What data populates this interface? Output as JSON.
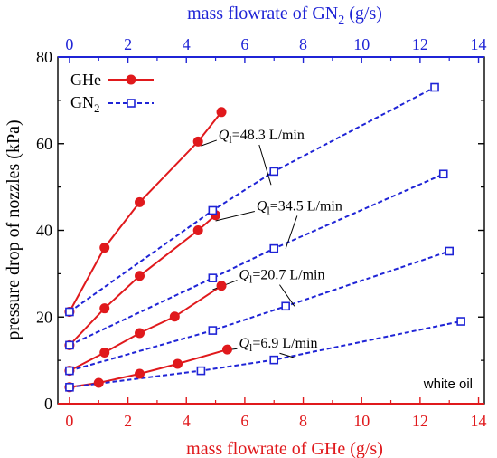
{
  "chart_data": {
    "type": "line",
    "x_bottom_label_main": "mass flowrate of GHe (g/s)",
    "x_top_label_pre": "mass flowrate of GN",
    "x_top_label_sub": "2",
    "x_top_label_post": " (g/s)",
    "y_label": "pressure drop of nozzles (kPa)",
    "x_bottom_range": [
      -0.4,
      14.2
    ],
    "x_top_range": [
      -0.4,
      14.2
    ],
    "y_range": [
      0,
      80
    ],
    "x_ticks": [
      "0",
      "2",
      "4",
      "6",
      "8",
      "10",
      "12",
      "14"
    ],
    "y_ticks": [
      "0",
      "20",
      "40",
      "60",
      "80"
    ],
    "x_tick_values": [
      0,
      2,
      4,
      6,
      8,
      10,
      12,
      14
    ],
    "y_tick_values": [
      0,
      20,
      40,
      60,
      80
    ],
    "legend": [
      {
        "label": "GHe",
        "label_sub": "",
        "style": "solid-filled-circle",
        "color": "#e0191c"
      },
      {
        "label": "GN",
        "label_sub": "2",
        "style": "dashed-open-square",
        "color": "#1f24d6"
      }
    ],
    "note": "white oil",
    "ghe_color": "#e0191c",
    "gn2_color": "#1f24d6",
    "x_bottom_axis_color": "#e0191c",
    "x_top_axis_color": "#1f24d6",
    "series": [
      {
        "name": "GHe",
        "axis": "bottom",
        "group": "48.3",
        "x": [
          0,
          1.2,
          2.4,
          4.4,
          5.2
        ],
        "y": [
          21.2,
          36,
          46.5,
          60.5,
          67.3
        ]
      },
      {
        "name": "GHe",
        "axis": "bottom",
        "group": "34.5",
        "x": [
          0,
          1.2,
          2.4,
          4.4,
          5.0
        ],
        "y": [
          13.5,
          22,
          29.5,
          40,
          43.5
        ]
      },
      {
        "name": "GHe",
        "axis": "bottom",
        "group": "20.7",
        "x": [
          0,
          1.2,
          2.4,
          3.6,
          5.2
        ],
        "y": [
          7.6,
          11.8,
          16.3,
          20.1,
          27.2
        ]
      },
      {
        "name": "GHe",
        "axis": "bottom",
        "group": "6.9",
        "x": [
          0,
          1.0,
          2.4,
          3.7,
          5.4
        ],
        "y": [
          3.8,
          4.8,
          6.9,
          9.2,
          12.5
        ]
      },
      {
        "name": "GN2",
        "axis": "top",
        "group": "48.3",
        "x": [
          0,
          4.9,
          7.0,
          12.5
        ],
        "y": [
          21.2,
          44.6,
          53.6,
          73
        ]
      },
      {
        "name": "GN2",
        "axis": "top",
        "group": "34.5",
        "x": [
          0,
          4.9,
          7.0,
          12.8
        ],
        "y": [
          13.5,
          29,
          35.8,
          53
        ]
      },
      {
        "name": "GN2",
        "axis": "top",
        "group": "20.7",
        "x": [
          0,
          4.9,
          7.4,
          13.0
        ],
        "y": [
          7.6,
          16.9,
          22.5,
          35.2
        ]
      },
      {
        "name": "GN2",
        "axis": "top",
        "group": "6.9",
        "x": [
          0,
          4.5,
          7.0,
          13.4
        ],
        "y": [
          3.8,
          7.6,
          10.1,
          19
        ]
      }
    ],
    "annotations": [
      {
        "pre": "Q",
        "sub": "l",
        "text": "=48.3 L/min",
        "label_at": [
          5.1,
          61
        ],
        "point_at": [
          4.5,
          59.5
        ],
        "point2_at": [
          6.9,
          50.5
        ]
      },
      {
        "pre": "Q",
        "sub": "l",
        "text": "=34.5 L/min",
        "label_at": [
          6.4,
          44.6
        ],
        "point_at": [
          5.0,
          42.2
        ],
        "point2_at": [
          7.4,
          35.8
        ]
      },
      {
        "pre": "Q",
        "sub": "l",
        "text": "=20.7 L/min",
        "label_at": [
          5.8,
          28.7
        ],
        "point_at": [
          4.9,
          26.3
        ],
        "point2_at": [
          7.7,
          22.5
        ]
      },
      {
        "pre": "Q",
        "sub": "l",
        "text": "=6.9 L/min",
        "label_at": [
          5.8,
          12.9
        ],
        "point_at": [
          5.3,
          12.3
        ],
        "point2_at": [
          7.7,
          10.6
        ]
      }
    ]
  }
}
